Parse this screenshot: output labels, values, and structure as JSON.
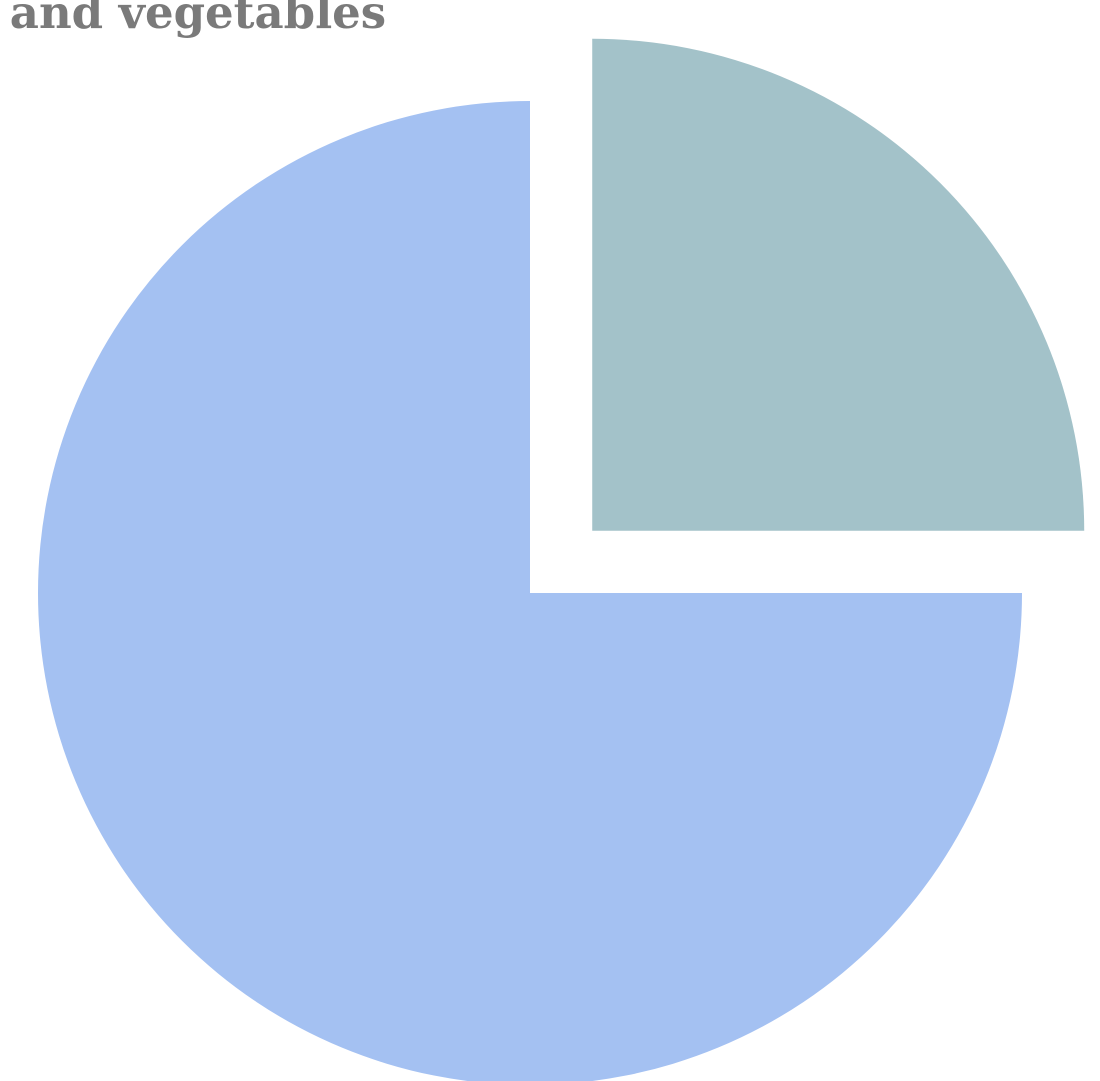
{
  "chart_data": {
    "type": "pie",
    "title": "ts and vegetables",
    "start_angle": "12 o'clock",
    "direction": "clockwise",
    "exploded": [
      "Slice 1"
    ],
    "slices": [
      {
        "label": "",
        "value": 25,
        "color": "#a3c2c9"
      },
      {
        "label": "",
        "value": 75,
        "color": "#a4c1f2"
      }
    ]
  }
}
